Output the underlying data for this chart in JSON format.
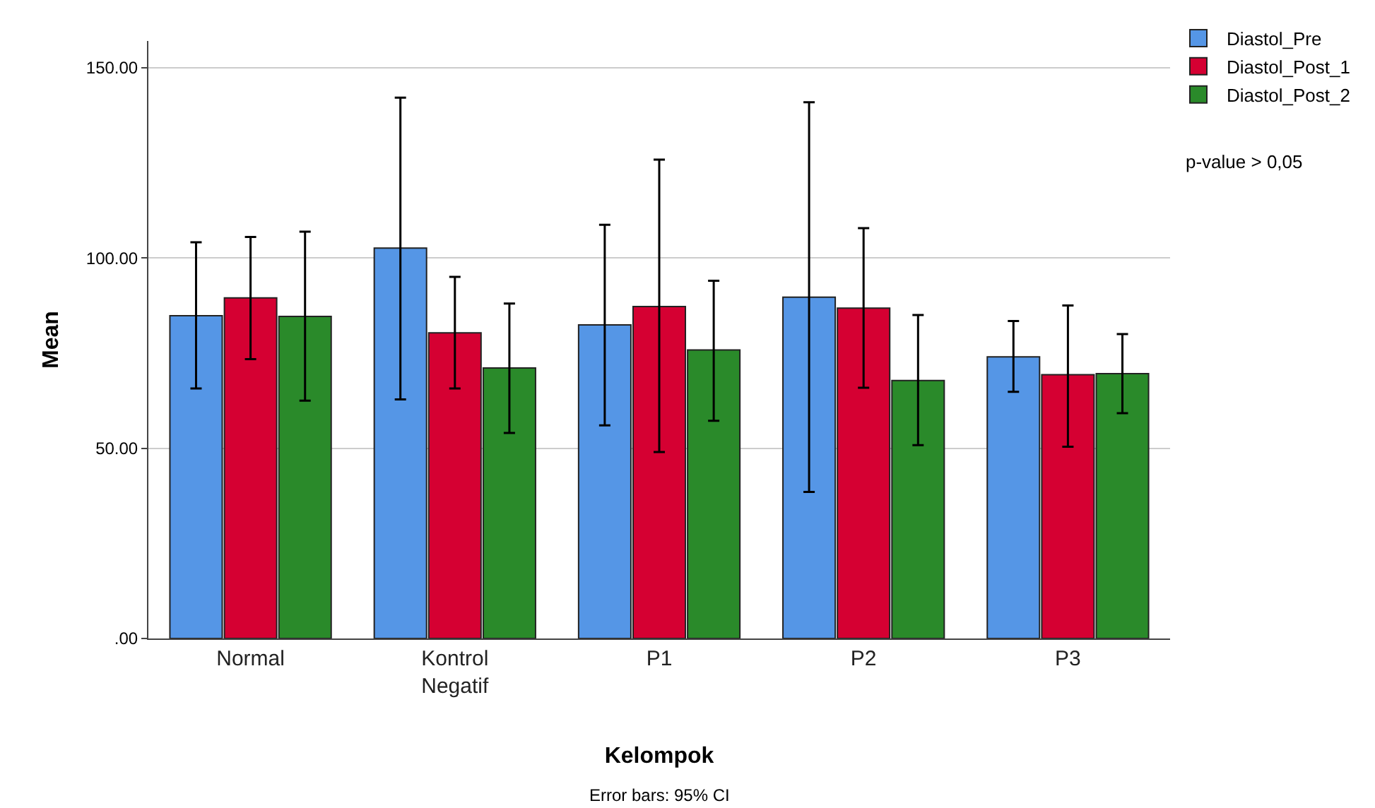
{
  "chart_data": {
    "type": "bar",
    "xlabel": "Kelompok",
    "ylabel": "Mean",
    "categories": [
      "Normal",
      "Kontrol\nNegatif",
      "P1",
      "P2",
      "P3"
    ],
    "series": [
      {
        "name": "Diastol_Pre",
        "color": "#5596e6",
        "values": [
          84.8,
          102.6,
          82.4,
          89.7,
          74.0
        ],
        "errors": [
          [
            65.7,
            104.1
          ],
          [
            62.8,
            142.1
          ],
          [
            56.0,
            108.7
          ],
          [
            38.5,
            140.9
          ],
          [
            64.8,
            83.4
          ]
        ]
      },
      {
        "name": "Diastol_Post_1",
        "color": "#d50032",
        "values": [
          89.5,
          80.3,
          87.2,
          86.8,
          69.3
        ],
        "errors": [
          [
            73.4,
            105.5
          ],
          [
            65.7,
            95.0
          ],
          [
            49.0,
            125.8
          ],
          [
            65.9,
            107.8
          ],
          [
            50.4,
            87.5
          ]
        ]
      },
      {
        "name": "Diastol_Post_2",
        "color": "#2a8a2a",
        "values": [
          84.6,
          71.1,
          75.8,
          67.8,
          69.6
        ],
        "errors": [
          [
            62.5,
            106.9
          ],
          [
            54.0,
            88.0
          ],
          [
            57.2,
            94.0
          ],
          [
            50.8,
            85.0
          ],
          [
            59.2,
            80.0
          ]
        ]
      }
    ],
    "ylim": [
      0,
      157
    ],
    "yticks": [
      {
        "value": 0,
        "label": ".00"
      },
      {
        "value": 50,
        "label": "50.00"
      },
      {
        "value": 100,
        "label": "100.00"
      },
      {
        "value": 150,
        "label": "150.00"
      }
    ],
    "grid": "y",
    "legend": "top right",
    "annotations": [
      "p-value > 0,05",
      "Error bars: 95% CI"
    ]
  }
}
